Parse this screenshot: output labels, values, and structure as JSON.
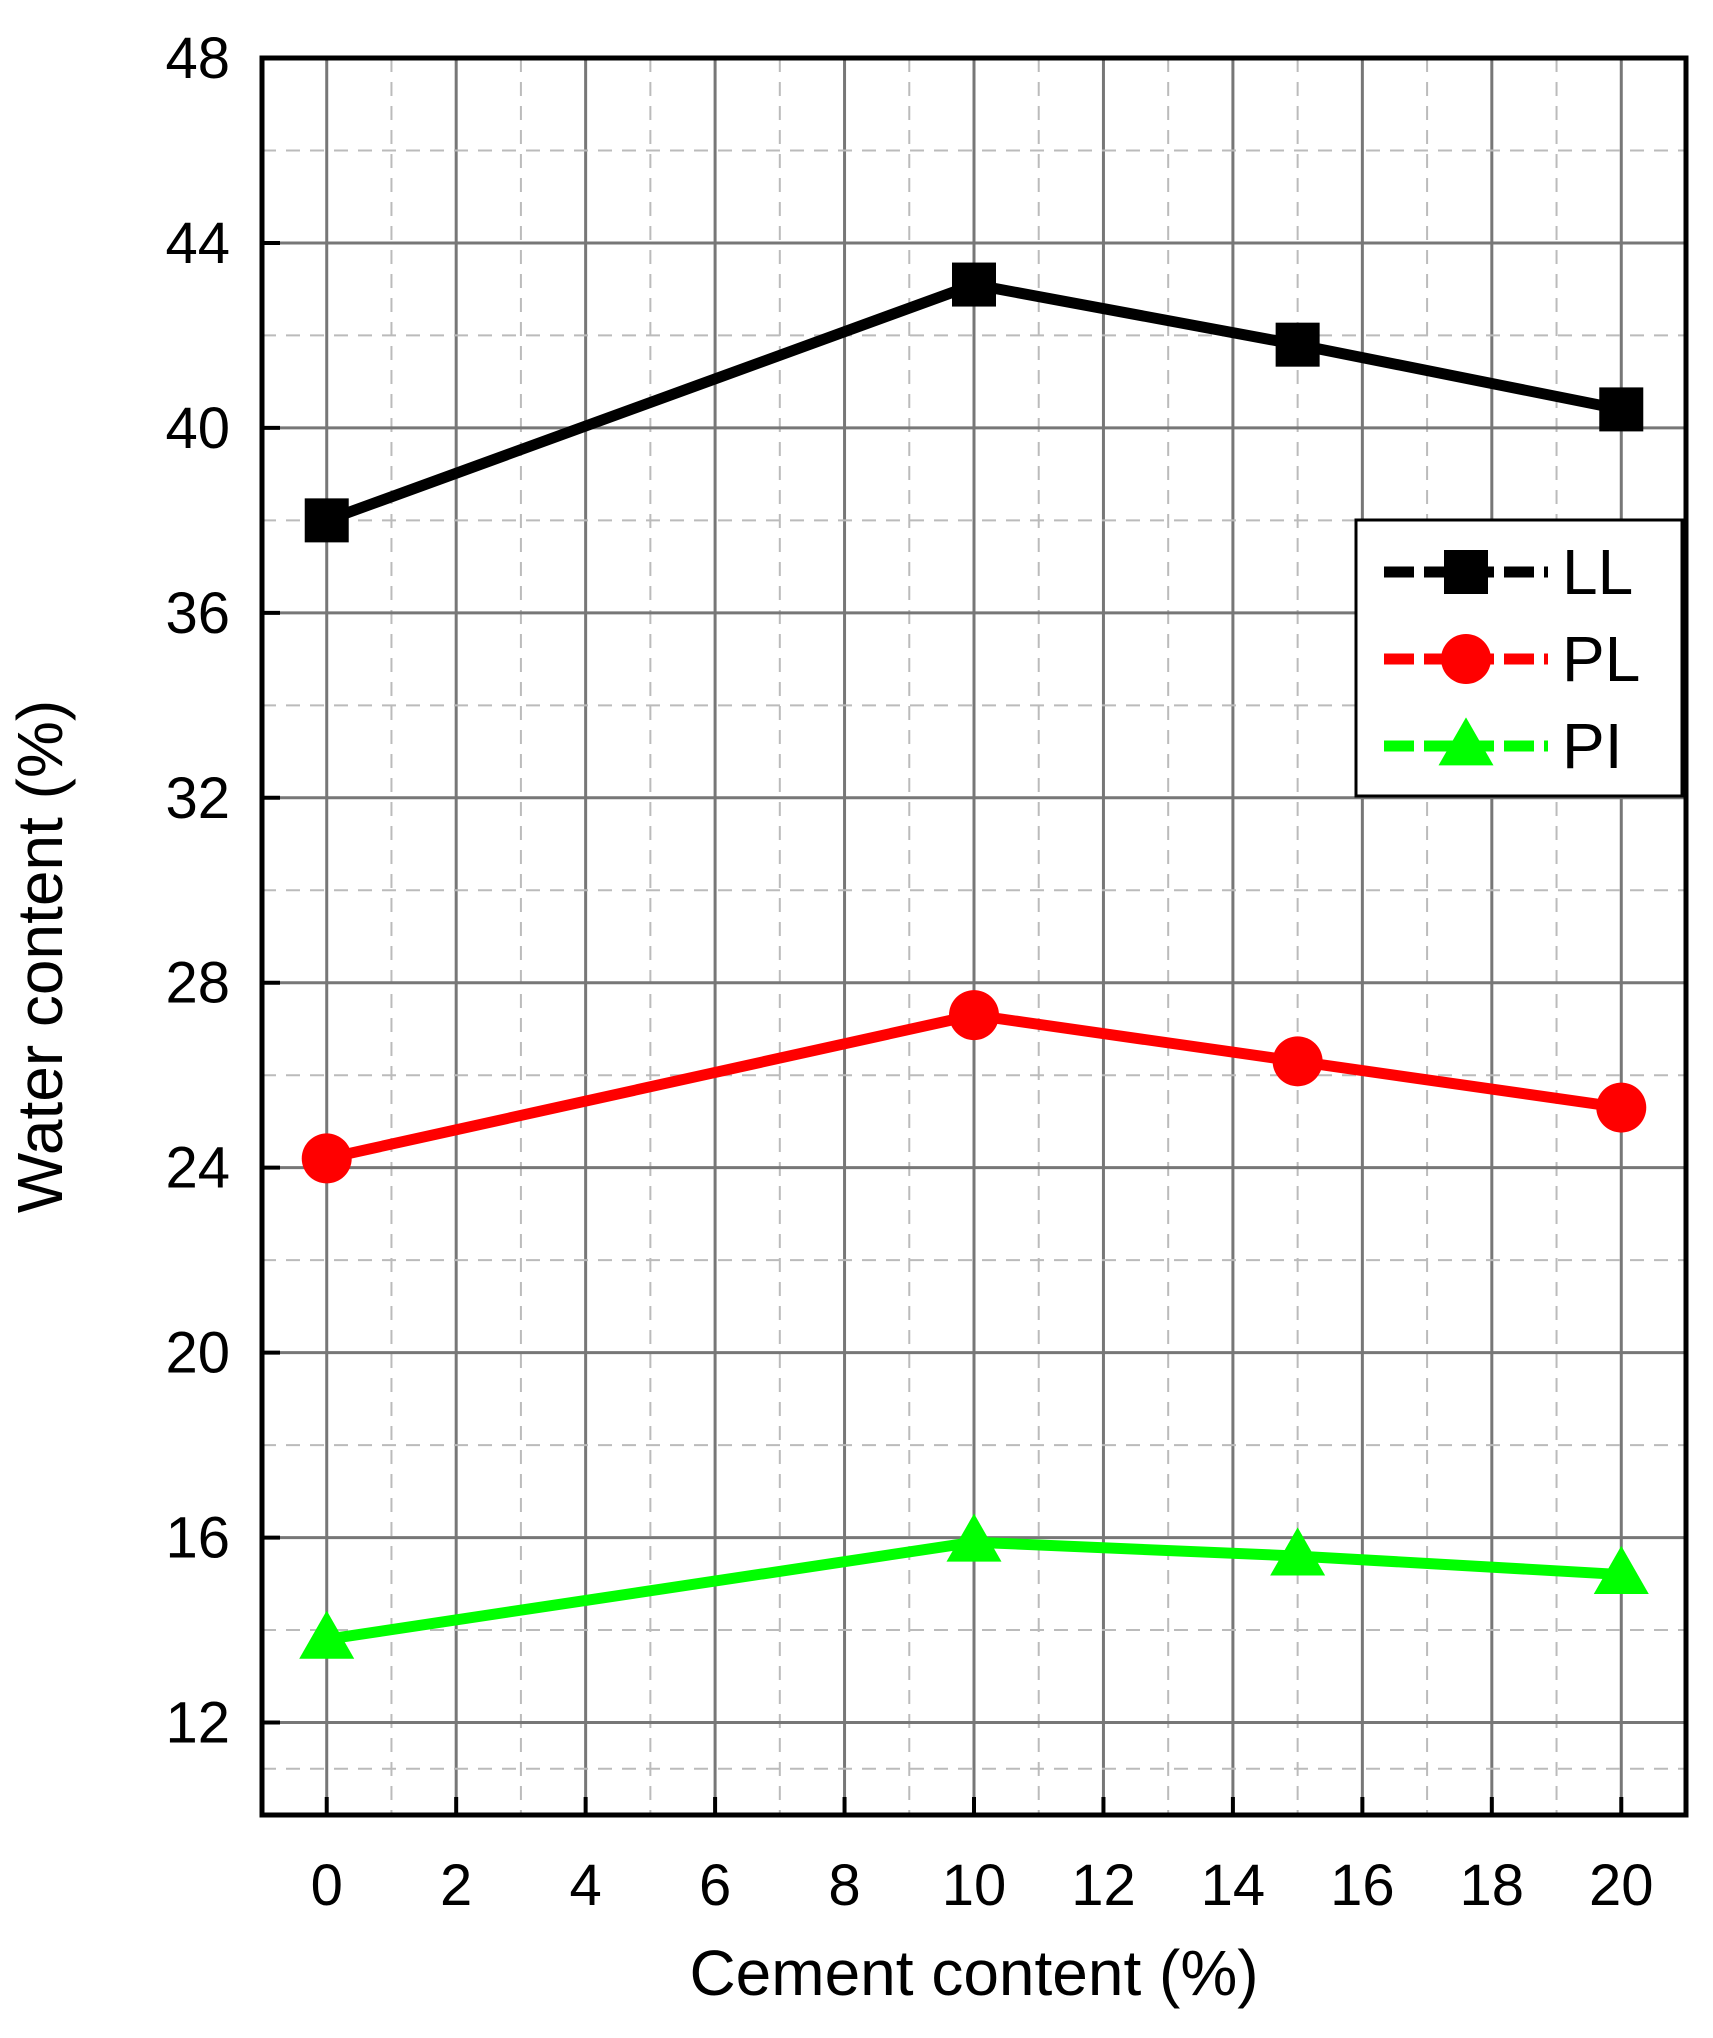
{
  "chart_data": {
    "type": "line",
    "xlabel": "Cement content (%)",
    "ylabel": "Water content (%)",
    "xlim": [
      -1,
      21
    ],
    "ylim": [
      10,
      48
    ],
    "xticks": [
      0,
      2,
      4,
      6,
      8,
      10,
      12,
      14,
      16,
      18,
      20
    ],
    "xtick_labels": [
      "0",
      "2",
      "4",
      "6",
      "8",
      "10",
      "12",
      "14",
      "16",
      "18",
      "20"
    ],
    "yticks": [
      12,
      16,
      20,
      24,
      28,
      32,
      36,
      40,
      44,
      48
    ],
    "ytick_labels": [
      "12",
      "16",
      "20",
      "24",
      "28",
      "32",
      "36",
      "40",
      "44",
      "48"
    ],
    "grid": true,
    "legend_position": "right",
    "x": [
      0,
      10,
      15,
      20
    ],
    "series": [
      {
        "name": "LL",
        "values": [
          38.0,
          43.1,
          41.8,
          40.4
        ],
        "color": "#000000",
        "marker": "square"
      },
      {
        "name": "PL",
        "values": [
          24.2,
          27.3,
          26.3,
          25.3
        ],
        "color": "#ff0000",
        "marker": "circle"
      },
      {
        "name": "PI",
        "values": [
          13.8,
          15.9,
          15.6,
          15.2
        ],
        "color": "#00ff00",
        "marker": "triangle"
      }
    ]
  }
}
